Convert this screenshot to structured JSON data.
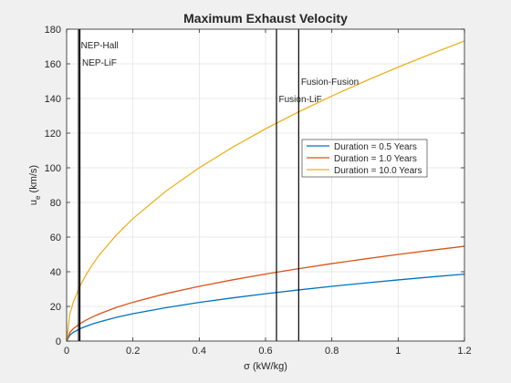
{
  "chart_data": {
    "type": "line",
    "title": "Maximum Exhaust Velocity",
    "xlabel": "σ (kW/kg)",
    "ylabel": "u",
    "ylabel_subscript": "e",
    "ylabel_units": " (km/s)",
    "xlim": [
      0,
      1.2
    ],
    "ylim": [
      0,
      180
    ],
    "xticks": [
      0,
      0.2,
      0.4,
      0.6,
      0.8,
      1,
      1.2
    ],
    "xtick_labels": [
      "0",
      "0.2",
      "0.4",
      "0.6",
      "0.8",
      "1",
      "1.2"
    ],
    "yticks": [
      0,
      20,
      40,
      60,
      80,
      100,
      120,
      140,
      160,
      180
    ],
    "ytick_labels": [
      "0",
      "20",
      "40",
      "60",
      "80",
      "100",
      "120",
      "140",
      "160",
      "180"
    ],
    "grid": true,
    "legend_position": "right",
    "series": [
      {
        "name": "Duration = 0.5 Years",
        "color": "#0072BD",
        "x": [
          0,
          0.01,
          0.02,
          0.04,
          0.06,
          0.08,
          0.1,
          0.15,
          0.2,
          0.3,
          0.4,
          0.5,
          0.6,
          0.7,
          0.8,
          0.9,
          1.0,
          1.1,
          1.2
        ],
        "y": [
          0,
          3.5,
          5.0,
          7.1,
          8.6,
          10.0,
          11.1,
          13.7,
          15.8,
          19.3,
          22.3,
          24.9,
          27.3,
          29.5,
          31.6,
          33.5,
          35.3,
          37.0,
          38.6
        ]
      },
      {
        "name": "Duration = 1.0 Years",
        "color": "#D95319",
        "x": [
          0,
          0.01,
          0.02,
          0.04,
          0.06,
          0.08,
          0.1,
          0.15,
          0.2,
          0.3,
          0.4,
          0.5,
          0.6,
          0.7,
          0.8,
          0.9,
          1.0,
          1.1,
          1.2
        ],
        "y": [
          0,
          5.0,
          7.1,
          10.0,
          12.2,
          14.1,
          15.8,
          19.4,
          22.4,
          27.4,
          31.6,
          35.3,
          38.7,
          41.8,
          44.7,
          47.4,
          50.0,
          52.4,
          54.7
        ]
      },
      {
        "name": "Duration = 10.0 Years",
        "color": "#EDB120",
        "x": [
          0,
          0.01,
          0.02,
          0.04,
          0.06,
          0.08,
          0.1,
          0.15,
          0.2,
          0.3,
          0.4,
          0.5,
          0.6,
          0.7,
          0.8,
          0.9,
          1.0,
          1.1,
          1.2
        ],
        "y": [
          0,
          15.8,
          22.4,
          31.6,
          38.7,
          44.7,
          50.0,
          61.2,
          70.7,
          86.6,
          100.0,
          111.8,
          122.5,
          132.3,
          141.4,
          150.0,
          158.1,
          165.8,
          173.2
        ]
      }
    ],
    "vertical_lines": [
      {
        "label": "NEP-Hall",
        "x": 0.036,
        "label_y": 171
      },
      {
        "label": "NEP-LiF",
        "x": 0.04,
        "label_y": 161
      },
      {
        "label": "Fusion-LiF",
        "x": 0.633,
        "label_y": 140
      },
      {
        "label": "Fusion-Fusion",
        "x": 0.7,
        "label_y": 150
      }
    ]
  }
}
